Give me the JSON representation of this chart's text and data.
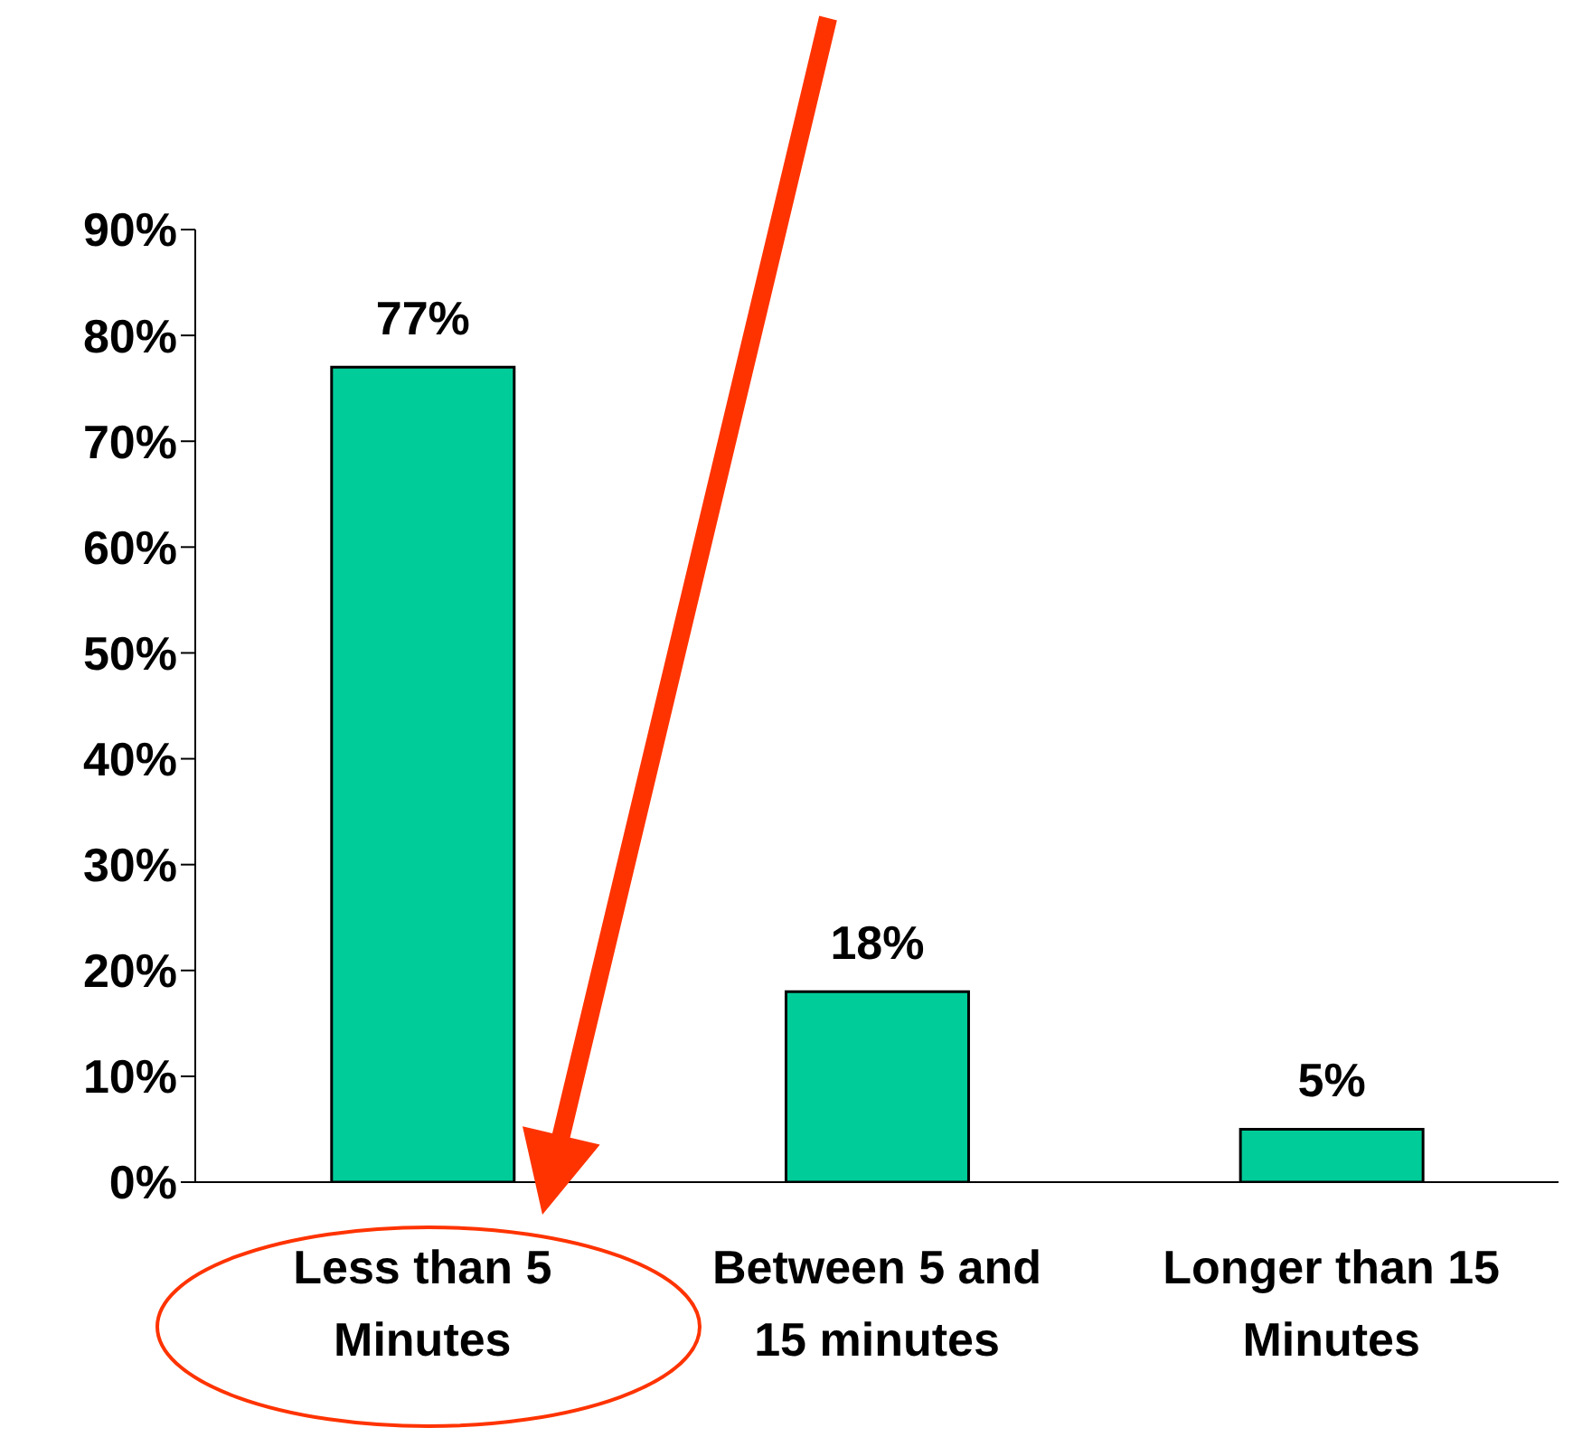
{
  "chart_data": {
    "type": "bar",
    "categories": [
      "Less than 5 Minutes",
      "Between 5 and 15 minutes",
      "Longer than 15 Minutes"
    ],
    "values": [
      77,
      18,
      5
    ],
    "color": "#00cc99",
    "value_labels": [
      "77%",
      "18%",
      "5%"
    ],
    "ylim": [
      0,
      90
    ],
    "yticks": [
      {
        "value": 0,
        "label": "0%"
      },
      {
        "value": 10,
        "label": "10%"
      },
      {
        "value": 20,
        "label": "20%"
      },
      {
        "value": 30,
        "label": "30%"
      },
      {
        "value": 40,
        "label": "40%"
      },
      {
        "value": 50,
        "label": "50%"
      },
      {
        "value": 60,
        "label": "60%"
      },
      {
        "value": 70,
        "label": "70%"
      },
      {
        "value": 80,
        "label": "80%"
      },
      {
        "value": 90,
        "label": "90%"
      }
    ],
    "grid": false,
    "legend": false
  }
}
